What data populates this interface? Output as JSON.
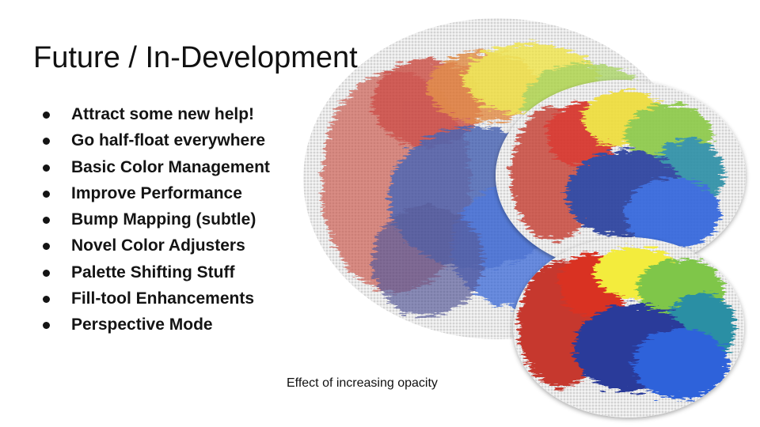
{
  "slide": {
    "title": "Future / In-Development",
    "bullets": [
      "Attract some new help!",
      "Go half-float everywhere",
      "Basic Color Management",
      "Improve Performance",
      "Bump Mapping (subtle)",
      "Novel Color Adjusters",
      "Palette Shifting Stuff",
      "Fill-tool Enhancements",
      "Perspective Mode"
    ],
    "caption": "Effect of increasing opacity"
  },
  "colors": {
    "red": "#c63a2e",
    "orange": "#e8822a",
    "yellow": "#f2ea3c",
    "green": "#7ec44a",
    "teal": "#2a8fa0",
    "blue": "#2f5fd6",
    "navy": "#2b3580",
    "canvas": "#e6e6e6"
  },
  "images": [
    {
      "name": "paint-swatch-low-opacity",
      "icon": "color-wheel-brush-sample"
    },
    {
      "name": "paint-swatch-medium-opacity",
      "icon": "color-wheel-brush-sample"
    },
    {
      "name": "paint-swatch-high-opacity",
      "icon": "color-wheel-brush-sample"
    }
  ]
}
